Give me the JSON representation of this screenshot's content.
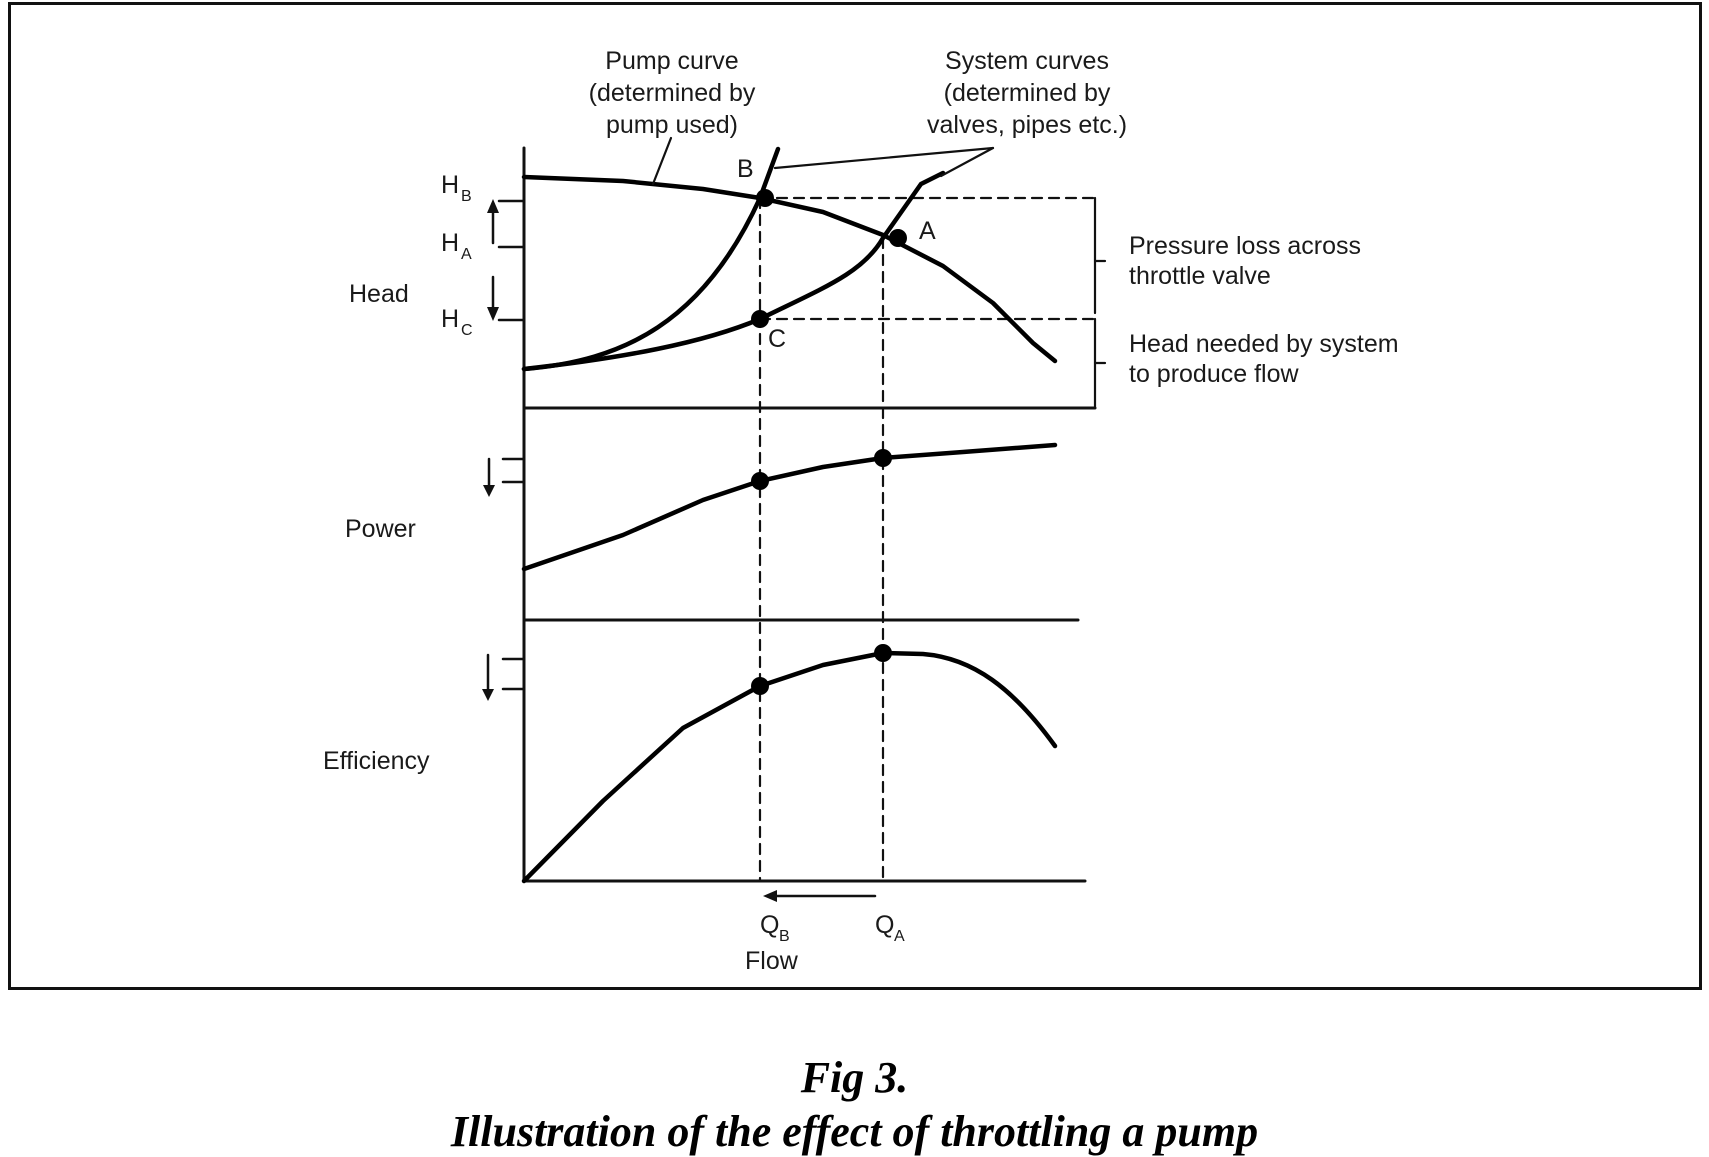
{
  "figure": {
    "labels": {
      "pump_curve": [
        "Pump curve",
        "(determined by",
        "pump used)"
      ],
      "system_curves": [
        "System curves",
        "(determined by",
        "valves, pipes etc.)"
      ],
      "pressure_loss": [
        "Pressure loss across",
        "throttle valve"
      ],
      "head_needed": [
        "Head needed by system",
        "to produce flow"
      ],
      "head_axis": "Head",
      "power_axis": "Power",
      "efficiency_axis": "Efficiency",
      "flow_axis": "Flow",
      "point_b": "B",
      "point_a": "A",
      "point_c": "C",
      "hb_main": "H",
      "hb_sub": "B",
      "ha_main": "H",
      "ha_sub": "A",
      "hc_main": "H",
      "hc_sub": "C",
      "qb_main": "Q",
      "qb_sub": "B",
      "qa_main": "Q",
      "qa_sub": "A"
    }
  },
  "caption": {
    "number": "Fig 3.",
    "title": "Illustration of the effect of throttling a pump"
  }
}
